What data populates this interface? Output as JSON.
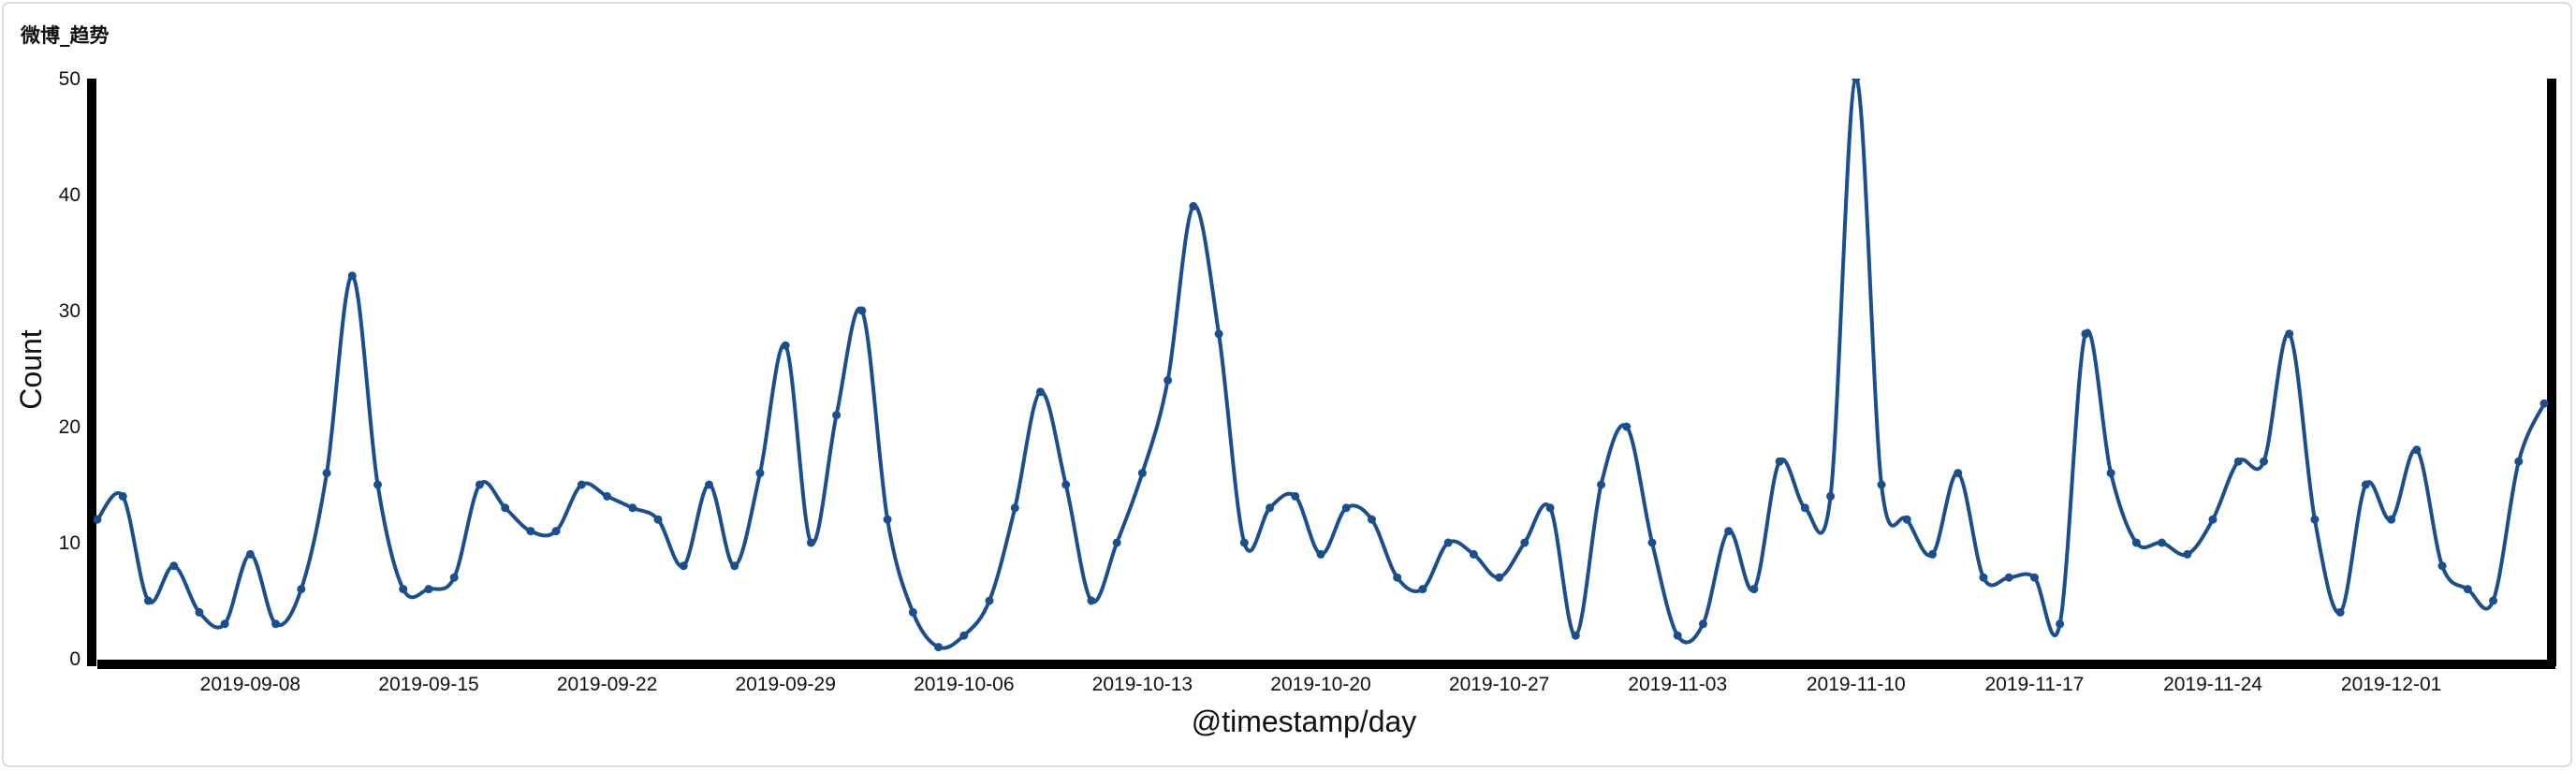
{
  "panel": {
    "title": "微博_趋势"
  },
  "chart_data": {
    "type": "line",
    "xlabel": "@timestamp/day",
    "ylabel": "Count",
    "ylim": [
      0,
      50
    ],
    "yticks": [
      0,
      10,
      20,
      30,
      40,
      50
    ],
    "x_start": "2019-09-02",
    "xtick_labels": [
      "2019-09-08",
      "2019-09-15",
      "2019-09-22",
      "2019-09-29",
      "2019-10-06",
      "2019-10-13",
      "2019-10-20",
      "2019-10-27",
      "2019-11-03",
      "2019-11-10",
      "2019-11-17",
      "2019-11-24",
      "2019-12-01"
    ],
    "grid": false,
    "line_color": "#1a4f8f",
    "series": [
      {
        "values": [
          12,
          14,
          5,
          8,
          4,
          3,
          9,
          3,
          6,
          16,
          33,
          15,
          6,
          6,
          7,
          15,
          13,
          11,
          11,
          15,
          14,
          13,
          12,
          8,
          15,
          8,
          16,
          27,
          10,
          21,
          30,
          12,
          4,
          1,
          2,
          5,
          13,
          23,
          15,
          5,
          10,
          16,
          24,
          39,
          28,
          10,
          13,
          14,
          9,
          13,
          12,
          7,
          6,
          10,
          9,
          7,
          10,
          13,
          2,
          15,
          20,
          10,
          2,
          3,
          11,
          6,
          17,
          13,
          14,
          50,
          15,
          12,
          9,
          16,
          7,
          7,
          7,
          3,
          28,
          16,
          10,
          10,
          9,
          12,
          17,
          17,
          28,
          12,
          4,
          15,
          12,
          18,
          8,
          6,
          5,
          17,
          22
        ]
      }
    ]
  }
}
